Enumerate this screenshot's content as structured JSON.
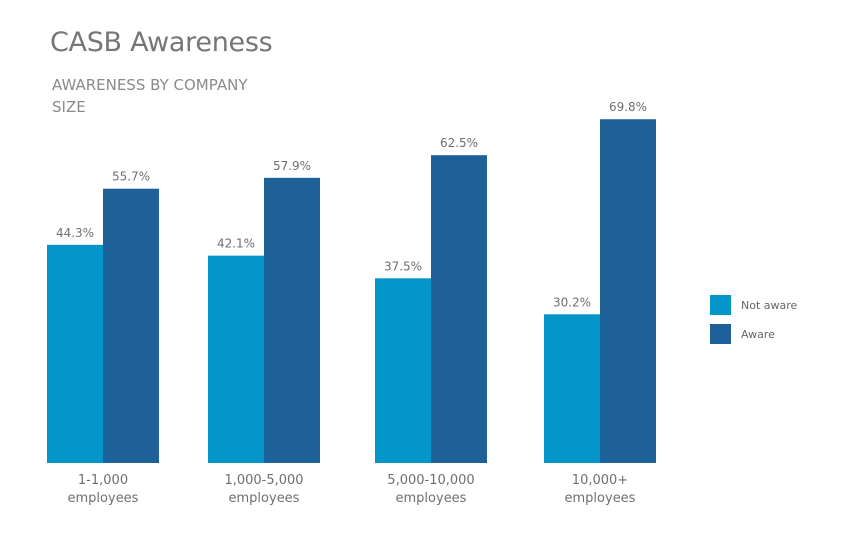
{
  "title": "CASB Awareness",
  "subtitle": "AWARENESS BY COMPANY SIZE",
  "chart_data": {
    "type": "bar",
    "title": "CASB Awareness",
    "subtitle": "AWARENESS BY COMPANY SIZE",
    "categories": [
      "1-1,000 employees",
      "1,000-5,000 employees",
      "5,000-10,000 employees",
      "10,000+ employees"
    ],
    "category_lines": [
      [
        "1-1,000",
        "employees"
      ],
      [
        "1,000-5,000",
        "employees"
      ],
      [
        "5,000-10,000",
        "employees"
      ],
      [
        "10,000+",
        "employees"
      ]
    ],
    "series": [
      {
        "name": "Not aware",
        "values": [
          44.3,
          42.1,
          37.5,
          30.2
        ],
        "labels": [
          "44.3%",
          "42.1%",
          "37.5%",
          "30.2%"
        ],
        "color": "#0596c9"
      },
      {
        "name": "Aware",
        "values": [
          55.7,
          57.9,
          62.5,
          69.8
        ],
        "labels": [
          "55.7%",
          "57.9%",
          "62.5%",
          "69.8%"
        ],
        "color": "#1d6198"
      }
    ],
    "ylim": [
      0,
      100
    ],
    "grid": false,
    "legend": "right",
    "data_labels": true
  }
}
